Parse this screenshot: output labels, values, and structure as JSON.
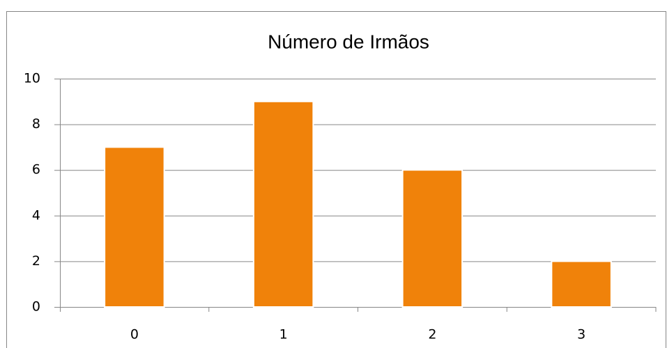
{
  "chart_data": {
    "type": "bar",
    "title": "Número de Irmãos",
    "categories": [
      "0",
      "1",
      "2",
      "3"
    ],
    "values": [
      7,
      9,
      6,
      2
    ],
    "color": "#f0820a",
    "ylim": [
      0,
      10
    ],
    "yticks": [
      0,
      2,
      4,
      6,
      8,
      10
    ],
    "grid": true
  }
}
